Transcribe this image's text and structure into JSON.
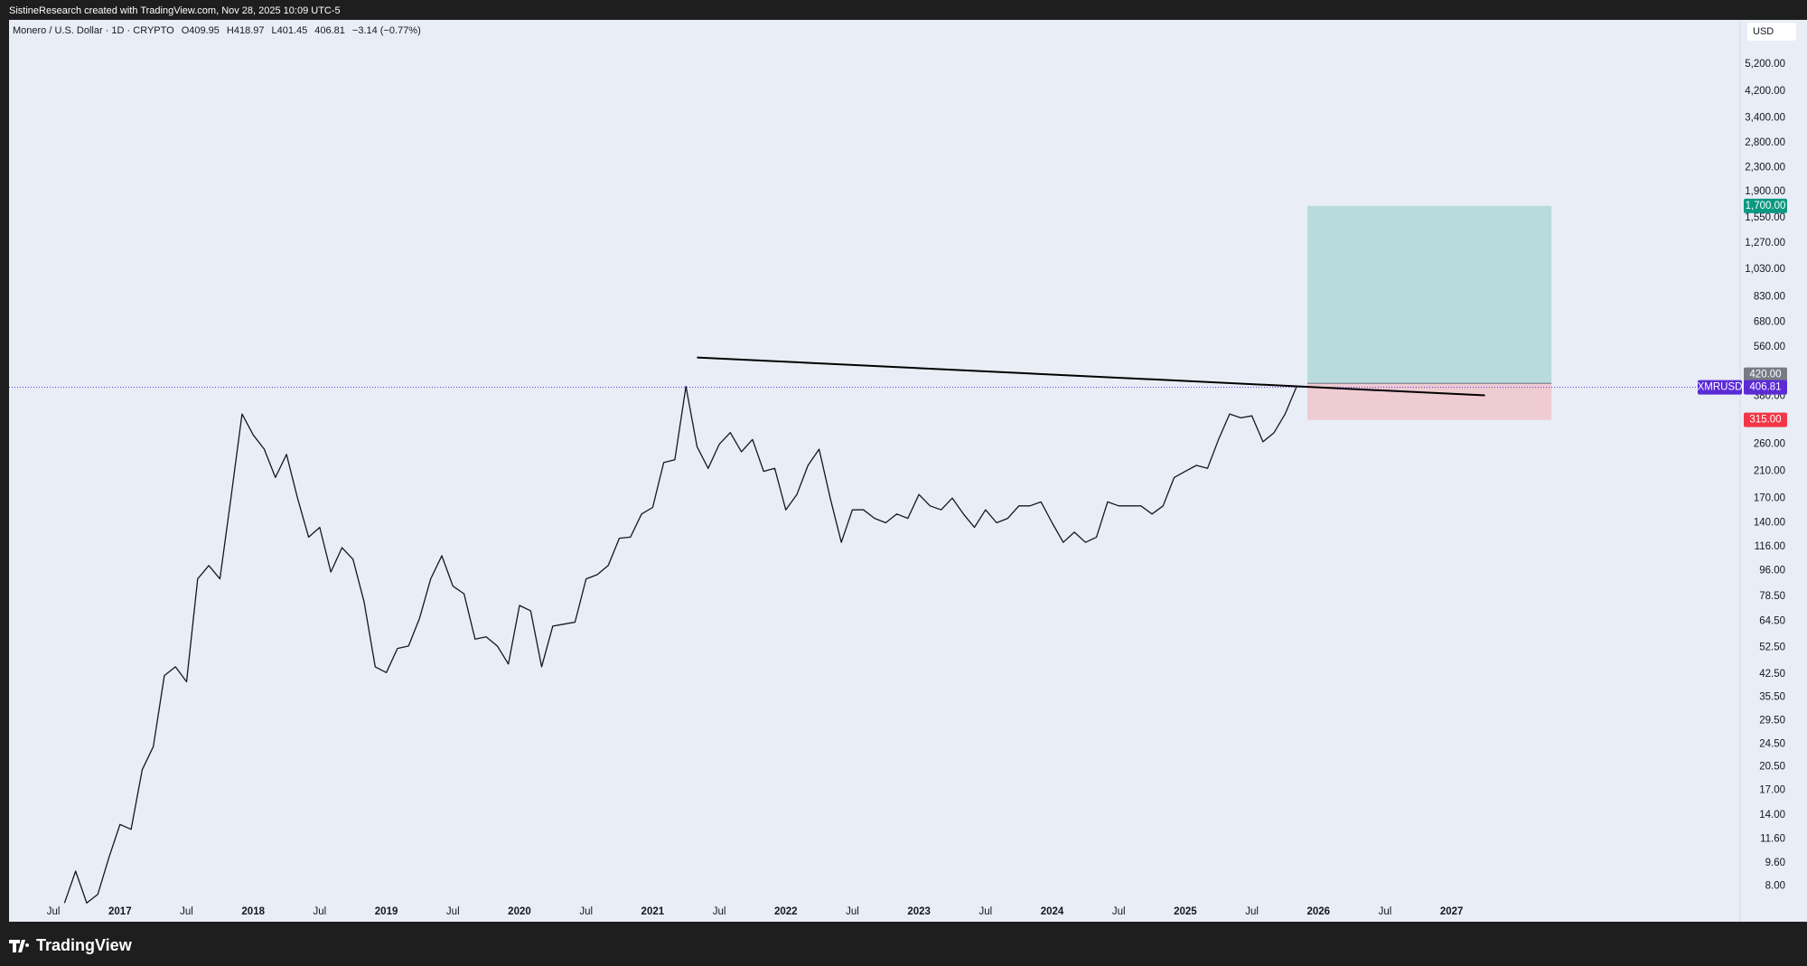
{
  "header": {
    "caption": "SistineResearch created with TradingView.com, Nov 28, 2025 10:09 UTC-5"
  },
  "footer": {
    "brand": "TradingView"
  },
  "chart_data": {
    "type": "line",
    "legend_text": {
      "symbol": "Monero / U.S. Dollar · 1D · CRYPTO",
      "open": "O409.95",
      "high": "H418.97",
      "low": "L401.45",
      "close": "406.81",
      "change": "−3.14 (−0.77%)"
    },
    "currency": "USD",
    "log_scale": true,
    "xlim": [
      "2016-03",
      "2029-03"
    ],
    "ylim": [
      6.04,
      7360
    ],
    "x": [
      "2016-08",
      "2016-09",
      "2016-10",
      "2016-11",
      "2016-12",
      "2017-01",
      "2017-02",
      "2017-03",
      "2017-04",
      "2017-05",
      "2017-06",
      "2017-07",
      "2017-08",
      "2017-09",
      "2017-10",
      "2017-11",
      "2017-12",
      "2018-01",
      "2018-02",
      "2018-03",
      "2018-04",
      "2018-05",
      "2018-06",
      "2018-07",
      "2018-08",
      "2018-09",
      "2018-10",
      "2018-11",
      "2018-12",
      "2019-01",
      "2019-02",
      "2019-03",
      "2019-04",
      "2019-05",
      "2019-06",
      "2019-07",
      "2019-08",
      "2019-09",
      "2019-10",
      "2019-11",
      "2019-12",
      "2020-01",
      "2020-02",
      "2020-03",
      "2020-04",
      "2020-05",
      "2020-06",
      "2020-07",
      "2020-08",
      "2020-09",
      "2020-10",
      "2020-11",
      "2020-12",
      "2021-01",
      "2021-02",
      "2021-03",
      "2021-04",
      "2021-05",
      "2021-06",
      "2021-07",
      "2021-08",
      "2021-09",
      "2021-10",
      "2021-11",
      "2021-12",
      "2022-01",
      "2022-02",
      "2022-03",
      "2022-04",
      "2022-05",
      "2022-06",
      "2022-07",
      "2022-08",
      "2022-09",
      "2022-10",
      "2022-11",
      "2022-12",
      "2023-01",
      "2023-02",
      "2023-03",
      "2023-04",
      "2023-05",
      "2023-06",
      "2023-07",
      "2023-08",
      "2023-09",
      "2023-10",
      "2023-11",
      "2023-12",
      "2024-01",
      "2024-02",
      "2024-03",
      "2024-04",
      "2024-05",
      "2024-06",
      "2024-07",
      "2024-08",
      "2024-09",
      "2024-10",
      "2024-11",
      "2024-12",
      "2025-01",
      "2025-02",
      "2025-03",
      "2025-04",
      "2025-05",
      "2025-06",
      "2025-07",
      "2025-08",
      "2025-09",
      "2025-10",
      "2025-11"
    ],
    "series": [
      {
        "name": "XMRUSD",
        "color": "#131722",
        "values": [
          7,
          9,
          7,
          7.5,
          10,
          13,
          12.5,
          20,
          24,
          42,
          45,
          40,
          90,
          100,
          90,
          170,
          330,
          280,
          250,
          200,
          240,
          170,
          125,
          135,
          95,
          115,
          105,
          75,
          45,
          43,
          52,
          53,
          66,
          90,
          108,
          85,
          80,
          56,
          57,
          53,
          46,
          73,
          70,
          45,
          62,
          63,
          64,
          90,
          93,
          100,
          124,
          125,
          150,
          158,
          225,
          230,
          410,
          255,
          215,
          260,
          285,
          245,
          270,
          210,
          215,
          155,
          175,
          220,
          250,
          170,
          120,
          155,
          155,
          145,
          140,
          150,
          145,
          175,
          160,
          155,
          170,
          150,
          135,
          155,
          140,
          145,
          160,
          160,
          165,
          140,
          120,
          130,
          120,
          125,
          165,
          160,
          160,
          160,
          150,
          160,
          200,
          210,
          220,
          215,
          270,
          330,
          320,
          325,
          265,
          285,
          330,
          406.81
        ]
      }
    ],
    "last_price": {
      "value": 406.81,
      "label": "406.81",
      "name": "XMRUSD",
      "color": "#5b2bd6"
    },
    "trendline": {
      "x": [
        "2021-05",
        "2027-04"
      ],
      "values": [
        515,
        382
      ],
      "color": "#000000"
    },
    "position": {
      "x": [
        "2025-12",
        "2027-10"
      ],
      "target": {
        "value": 1700,
        "label": "1,700.00",
        "color": "#089981",
        "fill": "#b8dcdb"
      },
      "entry": {
        "value": 420,
        "label": "420.00",
        "color": "#787b86"
      },
      "stop": {
        "value": 315,
        "label": "315.00",
        "color": "#f23645",
        "fill": "#efcbd2"
      }
    },
    "xticks": [
      {
        "value": "2016-07",
        "label": "Jul"
      },
      {
        "value": "2017-01",
        "label": "2017"
      },
      {
        "value": "2017-07",
        "label": "Jul"
      },
      {
        "value": "2018-01",
        "label": "2018"
      },
      {
        "value": "2018-07",
        "label": "Jul"
      },
      {
        "value": "2019-01",
        "label": "2019"
      },
      {
        "value": "2019-07",
        "label": "Jul"
      },
      {
        "value": "2020-01",
        "label": "2020"
      },
      {
        "value": "2020-07",
        "label": "Jul"
      },
      {
        "value": "2021-01",
        "label": "2021"
      },
      {
        "value": "2021-07",
        "label": "Jul"
      },
      {
        "value": "2022-01",
        "label": "2022"
      },
      {
        "value": "2022-07",
        "label": "Jul"
      },
      {
        "value": "2023-01",
        "label": "2023"
      },
      {
        "value": "2023-07",
        "label": "Jul"
      },
      {
        "value": "2024-01",
        "label": "2024"
      },
      {
        "value": "2024-07",
        "label": "Jul"
      },
      {
        "value": "2025-01",
        "label": "2025"
      },
      {
        "value": "2025-07",
        "label": "Jul"
      },
      {
        "value": "2026-01",
        "label": "2026"
      },
      {
        "value": "2026-07",
        "label": "Jul"
      },
      {
        "value": "2027-01",
        "label": "2027"
      }
    ],
    "yticks": [
      {
        "value": 8,
        "label": "8.00"
      },
      {
        "value": 9.6,
        "label": "9.60"
      },
      {
        "value": 11.6,
        "label": "11.60"
      },
      {
        "value": 14,
        "label": "14.00"
      },
      {
        "value": 17,
        "label": "17.00"
      },
      {
        "value": 20.5,
        "label": "20.50"
      },
      {
        "value": 24.5,
        "label": "24.50"
      },
      {
        "value": 29.5,
        "label": "29.50"
      },
      {
        "value": 35.5,
        "label": "35.50"
      },
      {
        "value": 42.5,
        "label": "42.50"
      },
      {
        "value": 52.5,
        "label": "52.50"
      },
      {
        "value": 64.5,
        "label": "64.50"
      },
      {
        "value": 78.5,
        "label": "78.50"
      },
      {
        "value": 96,
        "label": "96.00"
      },
      {
        "value": 116,
        "label": "116.00"
      },
      {
        "value": 140,
        "label": "140.00"
      },
      {
        "value": 170,
        "label": "170.00"
      },
      {
        "value": 210,
        "label": "210.00"
      },
      {
        "value": 260,
        "label": "260.00"
      },
      {
        "value": 380,
        "label": "380.00"
      },
      {
        "value": 560,
        "label": "560.00"
      },
      {
        "value": 680,
        "label": "680.00"
      },
      {
        "value": 830,
        "label": "830.00"
      },
      {
        "value": 1030,
        "label": "1,030.00"
      },
      {
        "value": 1270,
        "label": "1,270.00"
      },
      {
        "value": 1550,
        "label": "1,550.00"
      },
      {
        "value": 1900,
        "label": "1,900.00"
      },
      {
        "value": 2300,
        "label": "2,300.00"
      },
      {
        "value": 2800,
        "label": "2,800.00"
      },
      {
        "value": 3400,
        "label": "3,400.00"
      },
      {
        "value": 4200,
        "label": "4,200.00"
      },
      {
        "value": 5200,
        "label": "5,200.00"
      }
    ]
  }
}
